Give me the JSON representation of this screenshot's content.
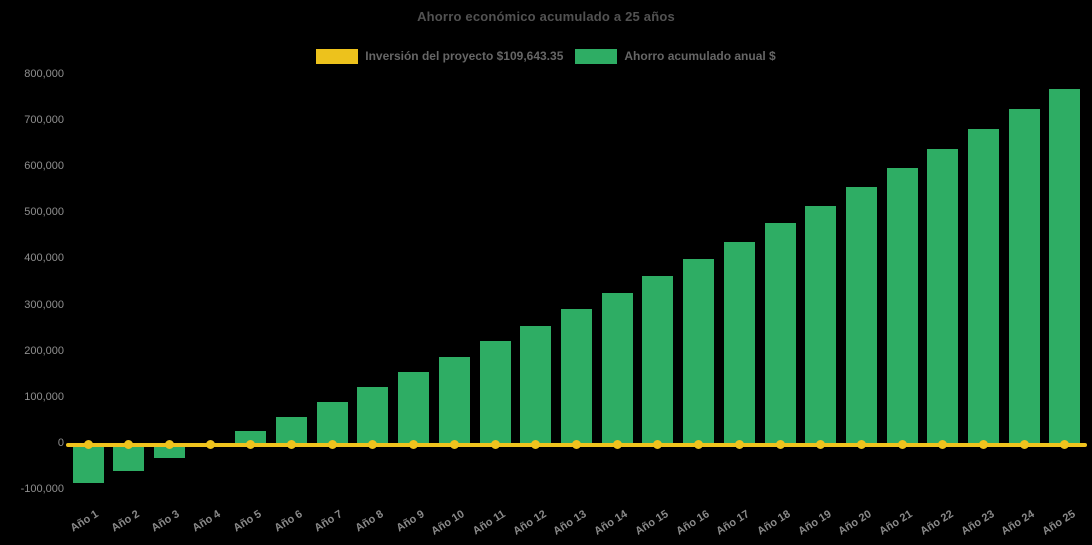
{
  "title": "Ahorro económico acumulado a 25 años",
  "legend": {
    "items": [
      {
        "label": "Inversión del proyecto $109,643.35",
        "color": "#EDC21C"
      },
      {
        "label": "Ahorro acumulado anual $",
        "color": "#2EAD64"
      }
    ]
  },
  "axes": {
    "ytick_labels": [
      "800,000",
      "700,000",
      "600,000",
      "500,000",
      "400,000",
      "300,000",
      "200,000",
      "100,000",
      "0",
      "-100,000"
    ],
    "xtick_labels": [
      "Año 1",
      "Año 2",
      "Año 3",
      "Año 4",
      "Año 5",
      "Año 6",
      "Año 7",
      "Año 8",
      "Año 9",
      "Año 10",
      "Año 11",
      "Año 12",
      "Año 13",
      "Año 14",
      "Año 15",
      "Año 16",
      "Año 17",
      "Año 18",
      "Año 19",
      "Año 20",
      "Año 21",
      "Año 22",
      "Año 23",
      "Año 24",
      "Año 25"
    ]
  },
  "chart_data": {
    "type": "bar",
    "title": "Ahorro económico acumulado a 25 años",
    "categories": [
      "Año 1",
      "Año 2",
      "Año 3",
      "Año 4",
      "Año 5",
      "Año 6",
      "Año 7",
      "Año 8",
      "Año 9",
      "Año 10",
      "Año 11",
      "Año 12",
      "Año 13",
      "Año 14",
      "Año 15",
      "Año 16",
      "Año 17",
      "Año 18",
      "Año 19",
      "Año 20",
      "Año 21",
      "Año 22",
      "Año 23",
      "Año 24",
      "Año 25"
    ],
    "series": [
      {
        "name": "Inversión del proyecto $109,643.35",
        "type": "line",
        "color": "#EFC31D",
        "marker": "circle",
        "values": [
          0,
          0,
          0,
          0,
          0,
          0,
          0,
          0,
          0,
          0,
          0,
          0,
          0,
          0,
          0,
          0,
          0,
          0,
          0,
          0,
          0,
          0,
          0,
          0,
          0
        ]
      },
      {
        "name": "Ahorro acumulado anual $",
        "type": "bar",
        "color": "#2EAD64",
        "values": [
          -85000,
          -60000,
          -32000,
          -2000,
          27000,
          58000,
          90000,
          122000,
          155000,
          188000,
          222000,
          254000,
          291000,
          326000,
          362000,
          399000,
          436000,
          477000,
          514000,
          555000,
          596000,
          638000,
          681000,
          724000,
          768000
        ]
      }
    ],
    "xlabel": "",
    "ylabel": "",
    "ylim": [
      -100000,
      800000
    ],
    "ytick_step": 100000,
    "grid": false,
    "legend_position": "top",
    "background": "#000000"
  }
}
